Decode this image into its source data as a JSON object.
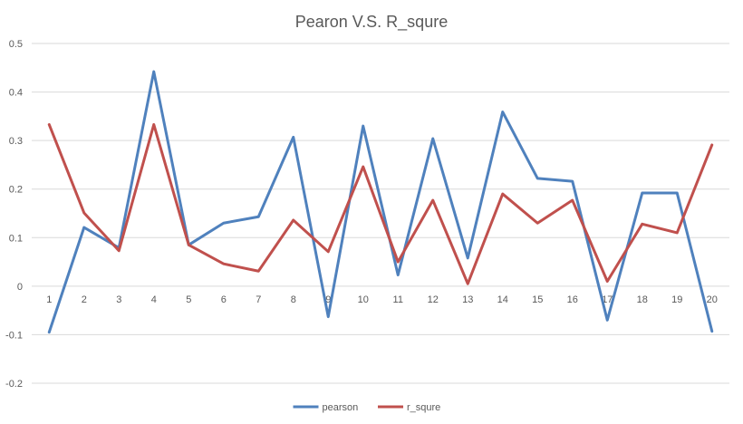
{
  "chart_data": {
    "type": "line",
    "title": "Pearon V.S. R_squre",
    "xlabel": "",
    "ylabel": "",
    "categories": [
      "1",
      "2",
      "3",
      "4",
      "5",
      "6",
      "7",
      "8",
      "9",
      "10",
      "11",
      "12",
      "13",
      "14",
      "15",
      "16",
      "17",
      "18",
      "19",
      "20"
    ],
    "ylim": [
      -0.2,
      0.5
    ],
    "yticks": [
      -0.2,
      -0.1,
      0,
      0.1,
      0.2,
      0.3,
      0.4,
      0.5
    ],
    "ytick_labels": [
      "-0.2",
      "-0.1",
      "0",
      "0.1",
      "0.2",
      "0.3",
      "0.4",
      "0.5"
    ],
    "grid": true,
    "legend_position": "bottom",
    "series": [
      {
        "name": "pearson",
        "color": "#4f81bd",
        "values": [
          -0.095,
          0.121,
          0.079,
          0.442,
          0.085,
          0.13,
          0.143,
          0.307,
          -0.063,
          0.33,
          0.023,
          0.304,
          0.058,
          0.359,
          0.222,
          0.216,
          -0.07,
          0.192,
          0.192,
          -0.093
        ]
      },
      {
        "name": "r_squre",
        "color": "#c0504d",
        "values": [
          0.333,
          0.151,
          0.073,
          0.333,
          0.085,
          0.046,
          0.031,
          0.136,
          0.071,
          0.246,
          0.05,
          0.177,
          0.005,
          0.19,
          0.13,
          0.177,
          0.01,
          0.128,
          0.11,
          0.291
        ]
      }
    ]
  }
}
